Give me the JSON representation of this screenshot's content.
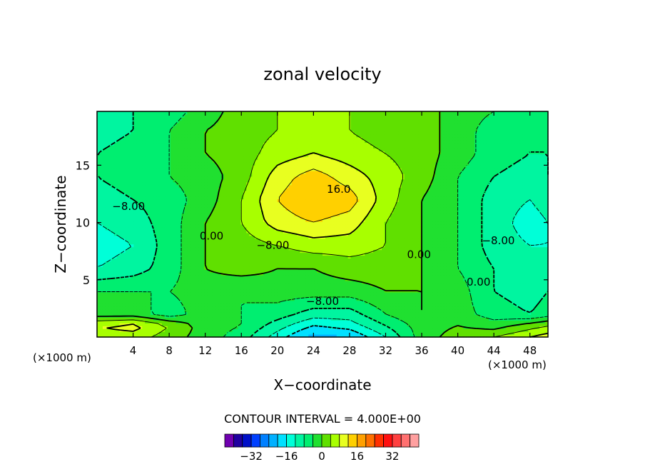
{
  "chart_data": {
    "type": "heatmap",
    "title": "zonal velocity",
    "xlabel": "X−coordinate",
    "ylabel": "Z−coordinate",
    "x_unit_left": "(×1000 m)",
    "x_unit_right": "(×1000 m)",
    "xlim": [
      0,
      50
    ],
    "ylim": [
      0,
      19.7
    ],
    "x_ticks": [
      4,
      8,
      12,
      16,
      20,
      24,
      28,
      32,
      36,
      40,
      44,
      48
    ],
    "y_ticks": [
      5,
      10,
      15
    ],
    "contour_interval_text": "CONTOUR INTERVAL = 4.000E+00",
    "contour_labels": [
      {
        "text": "−8.00",
        "x": 3.5,
        "z": 11.1
      },
      {
        "text": "0.00",
        "x": 12.7,
        "z": 8.5
      },
      {
        "text": "16.0",
        "x": 26.8,
        "z": 12.6
      },
      {
        "text": "−8.00",
        "x": 19.5,
        "z": 7.7
      },
      {
        "text": "−8.00",
        "x": 25.0,
        "z": 2.8
      },
      {
        "text": "0.00",
        "x": 35.7,
        "z": 6.9
      },
      {
        "text": "−8.00",
        "x": 44.5,
        "z": 8.1
      },
      {
        "text": "0.00",
        "x": 42.3,
        "z": 4.5
      }
    ],
    "colorbar": {
      "colors": [
        "#7000b0",
        "#2000a0",
        "#0010c8",
        "#0040ff",
        "#0080ff",
        "#00b0ff",
        "#00e0ff",
        "#00ffd8",
        "#00f5a0",
        "#00ee70",
        "#20e030",
        "#60e000",
        "#a8ff00",
        "#e8ff20",
        "#ffd000",
        "#ffa000",
        "#ff7000",
        "#ff3000",
        "#ff1010",
        "#ff4040",
        "#ff7070",
        "#ffa0a0"
      ],
      "tick_labels": [
        "−32",
        "−16",
        "0",
        "16",
        "32"
      ],
      "tick_values": [
        -32,
        -16,
        0,
        16,
        32
      ],
      "range": [
        -44,
        44
      ]
    },
    "field_grid": {
      "x": [
        0,
        4,
        8,
        12,
        16,
        20,
        24,
        28,
        32,
        36,
        40,
        44,
        48,
        50
      ],
      "z": [
        0,
        1,
        2,
        4,
        6,
        8,
        10,
        12,
        14,
        16,
        18,
        19.7
      ],
      "values": [
        [
          6,
          6,
          2,
          -2,
          -6,
          -14,
          -22,
          -20,
          -12,
          -2,
          2,
          4,
          8,
          10
        ],
        [
          8,
          10,
          4,
          -2,
          -4,
          -10,
          -16,
          -14,
          -8,
          -2,
          0,
          -2,
          2,
          4
        ],
        [
          -2,
          -2,
          -6,
          -2,
          -4,
          -6,
          -10,
          -10,
          -4,
          0,
          -2,
          -6,
          -8,
          -6
        ],
        [
          -4,
          -4,
          -4,
          -2,
          -4,
          -2,
          -2,
          -2,
          0,
          0,
          -2,
          -8,
          -10,
          -8
        ],
        [
          -12,
          -10,
          -6,
          0,
          2,
          0,
          0,
          2,
          2,
          0,
          -4,
          -8,
          -10,
          -10
        ],
        [
          -14,
          -12,
          -6,
          0,
          2,
          4,
          6,
          6,
          4,
          0,
          -4,
          -10,
          -12,
          -12
        ],
        [
          -12,
          -10,
          -6,
          0,
          4,
          10,
          12,
          10,
          4,
          0,
          -4,
          -10,
          -14,
          -12
        ],
        [
          -10,
          -8,
          -6,
          -2,
          4,
          12,
          16,
          14,
          6,
          0,
          -4,
          -10,
          -12,
          -10
        ],
        [
          -8,
          -6,
          -4,
          -2,
          2,
          10,
          14,
          10,
          6,
          2,
          -4,
          -8,
          -10,
          -8
        ],
        [
          -8,
          -6,
          -4,
          0,
          2,
          6,
          8,
          6,
          4,
          2,
          -2,
          -6,
          -8,
          -8
        ],
        [
          -10,
          -8,
          -4,
          0,
          2,
          4,
          6,
          4,
          2,
          2,
          -2,
          -6,
          -8,
          -8
        ],
        [
          -10,
          -8,
          -6,
          -2,
          2,
          4,
          4,
          4,
          2,
          2,
          -2,
          -4,
          -6,
          -6
        ]
      ]
    }
  }
}
